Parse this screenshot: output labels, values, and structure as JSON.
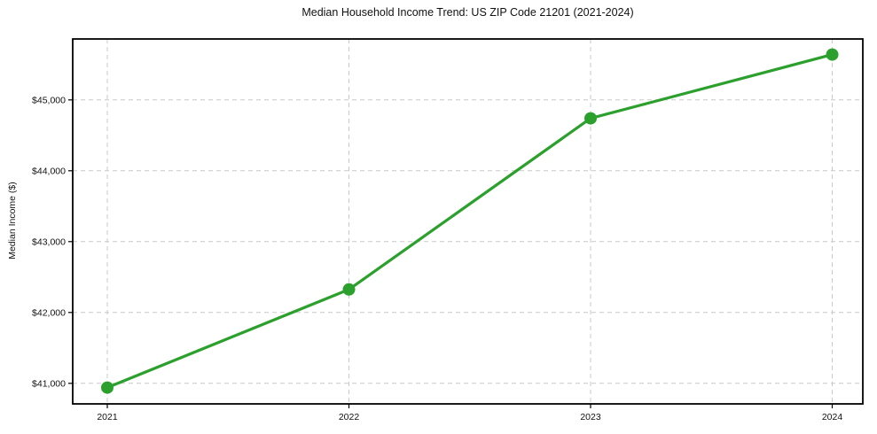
{
  "chart_data": {
    "type": "line",
    "title": "Median Household Income Trend: US ZIP Code 21201 (2021-2024)",
    "xlabel": "",
    "ylabel": "Median Income ($)",
    "x": [
      2021,
      2022,
      2023,
      2024
    ],
    "xtick_labels": [
      "2021",
      "2022",
      "2023",
      "2024"
    ],
    "series": [
      {
        "name": "Median Household Income",
        "values": [
          40940,
          42325,
          44740,
          45640
        ]
      }
    ],
    "yticks": [
      41000,
      42000,
      43000,
      44000,
      45000
    ],
    "ytick_labels": [
      "$41,000",
      "$42,000",
      "$43,000",
      "$44,000",
      "$45,000"
    ],
    "ylim": [
      40710,
      45860
    ],
    "grid": true,
    "legend": "none",
    "line_color": "#2ca02c",
    "marker": "circle",
    "grid_color": "#c9c9c9",
    "axis_color": "#000000",
    "text_color": "#111111",
    "background": "#ffffff"
  }
}
